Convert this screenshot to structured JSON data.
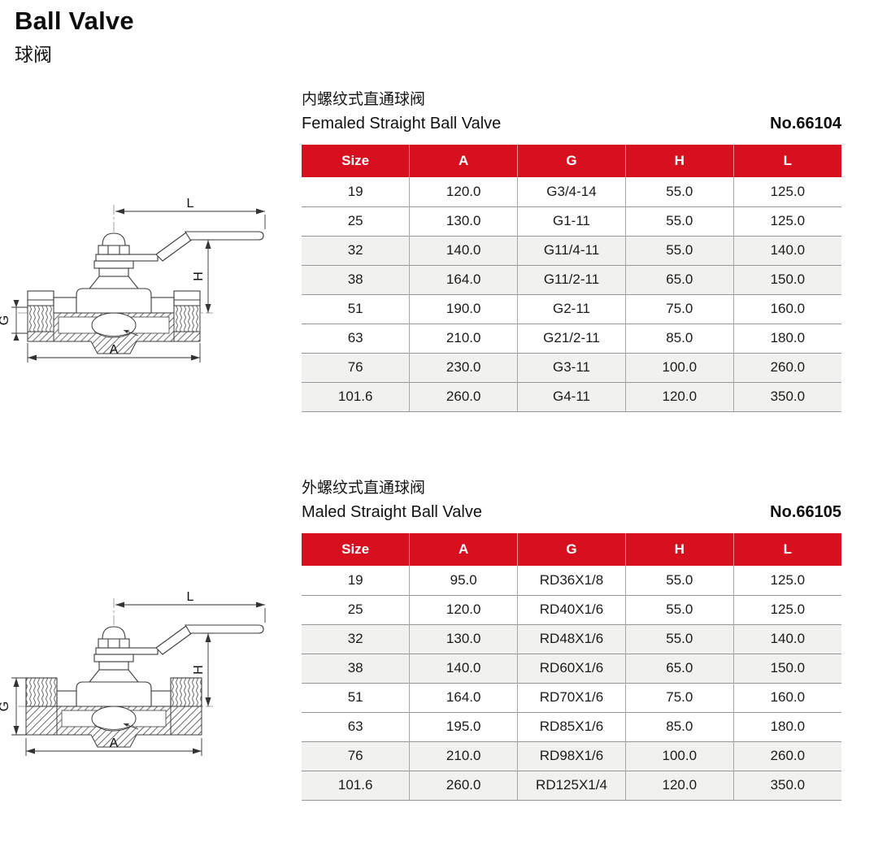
{
  "page": {
    "title": "Ball Valve",
    "subtitle": "球阀"
  },
  "colors": {
    "header_red": "#d70f1e",
    "row_alt_gray": "#f1f1ef",
    "table_border": "#979797",
    "drawing_line": "#3c3c3c"
  },
  "sections": [
    {
      "title_zh": "内螺纹式直通球阀",
      "title_en": "Femaled Straight Ball Valve",
      "model_no": "No.66104",
      "drawing_labels": {
        "l": "L",
        "h": "H",
        "g": "G",
        "a": "A"
      },
      "table": {
        "headers": [
          "Size",
          "A",
          "G",
          "H",
          "L"
        ],
        "rows": [
          [
            "19",
            "120.0",
            "G3/4-14",
            "55.0",
            "125.0"
          ],
          [
            "25",
            "130.0",
            "G1-11",
            "55.0",
            "125.0"
          ],
          [
            "32",
            "140.0",
            "G11/4-11",
            "55.0",
            "140.0"
          ],
          [
            "38",
            "164.0",
            "G11/2-11",
            "65.0",
            "150.0"
          ],
          [
            "51",
            "190.0",
            "G2-11",
            "75.0",
            "160.0"
          ],
          [
            "63",
            "210.0",
            "G21/2-11",
            "85.0",
            "180.0"
          ],
          [
            "76",
            "230.0",
            "G3-11",
            "100.0",
            "260.0"
          ],
          [
            "101.6",
            "260.0",
            "G4-11",
            "120.0",
            "350.0"
          ]
        ]
      }
    },
    {
      "title_zh": "外螺纹式直通球阀",
      "title_en": "Maled Straight Ball Valve",
      "model_no": "No.66105",
      "drawing_labels": {
        "l": "L",
        "h": "H",
        "g": "G",
        "a": "A"
      },
      "table": {
        "headers": [
          "Size",
          "A",
          "G",
          "H",
          "L"
        ],
        "rows": [
          [
            "19",
            "95.0",
            "RD36X1/8",
            "55.0",
            "125.0"
          ],
          [
            "25",
            "120.0",
            "RD40X1/6",
            "55.0",
            "125.0"
          ],
          [
            "32",
            "130.0",
            "RD48X1/6",
            "55.0",
            "140.0"
          ],
          [
            "38",
            "140.0",
            "RD60X1/6",
            "65.0",
            "150.0"
          ],
          [
            "51",
            "164.0",
            "RD70X1/6",
            "75.0",
            "160.0"
          ],
          [
            "63",
            "195.0",
            "RD85X1/6",
            "85.0",
            "180.0"
          ],
          [
            "76",
            "210.0",
            "RD98X1/6",
            "100.0",
            "260.0"
          ],
          [
            "101.6",
            "260.0",
            "RD125X1/4",
            "120.0",
            "350.0"
          ]
        ]
      }
    }
  ]
}
